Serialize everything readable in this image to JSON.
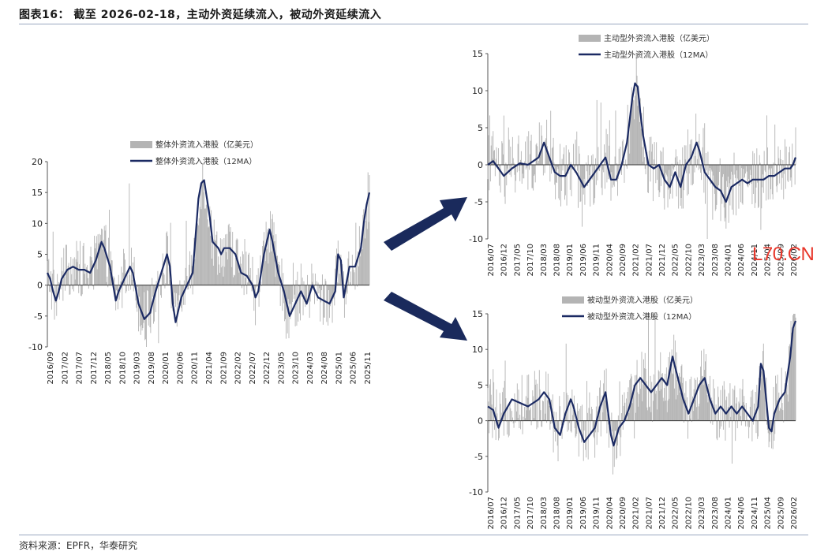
{
  "figure": {
    "title": "图表16： 截至 2026-02-18，主动外资延续流入，被动外资延续流入",
    "source": "资料来源：EPFR，华泰研究",
    "watermark": "L70.CN"
  },
  "colors": {
    "bar": "#b4b4b4",
    "line": "#1b2a63",
    "arrow": "#1a2a5c",
    "rule": "#9aa8c0"
  },
  "chart_data": [
    {
      "id": "total",
      "type": "bar",
      "legend": {
        "bar": "整体外资流入港股（亿美元）",
        "line": "整体外资流入港股（12MA）"
      },
      "ylim": [
        -10,
        20
      ],
      "yticks": [
        -10,
        -5,
        0,
        5,
        10,
        15,
        20
      ],
      "x_tick_labels": [
        "2016/09",
        "2017/02",
        "2017/07",
        "2017/12",
        "2018/05",
        "2018/10",
        "2019/03",
        "2019/08",
        "2020/01",
        "2020/06",
        "2020/11",
        "2021/04",
        "2021/09",
        "2022/02",
        "2022/07",
        "2022/12",
        "2023/05",
        "2023/10",
        "2024/03",
        "2024/08",
        "2025/01",
        "2025/06",
        "2025/11"
      ],
      "line_series": {
        "name": "整体外资流入港股（12MA）",
        "points": [
          [
            "2016/09",
            2
          ],
          [
            "2016/10",
            1
          ],
          [
            "2016/11",
            -1
          ],
          [
            "2016/12",
            -2.5
          ],
          [
            "2017/01",
            -1
          ],
          [
            "2017/02",
            1
          ],
          [
            "2017/04",
            2.5
          ],
          [
            "2017/06",
            3
          ],
          [
            "2017/08",
            2.5
          ],
          [
            "2017/10",
            2.5
          ],
          [
            "2017/12",
            2
          ],
          [
            "2018/02",
            4
          ],
          [
            "2018/04",
            7
          ],
          [
            "2018/05",
            6
          ],
          [
            "2018/07",
            3
          ],
          [
            "2018/09",
            -2.5
          ],
          [
            "2018/10",
            -1
          ],
          [
            "2018/12",
            1
          ],
          [
            "2019/02",
            3
          ],
          [
            "2019/03",
            2
          ],
          [
            "2019/05",
            -3
          ],
          [
            "2019/07",
            -5.5
          ],
          [
            "2019/09",
            -4.5
          ],
          [
            "2019/11",
            -1
          ],
          [
            "2020/01",
            2
          ],
          [
            "2020/03",
            5
          ],
          [
            "2020/04",
            3
          ],
          [
            "2020/05",
            -3
          ],
          [
            "2020/06",
            -6
          ],
          [
            "2020/08",
            -2
          ],
          [
            "2020/10",
            0
          ],
          [
            "2020/12",
            2
          ],
          [
            "2021/01",
            8
          ],
          [
            "2021/02",
            14
          ],
          [
            "2021/03",
            16.5
          ],
          [
            "2021/04",
            17
          ],
          [
            "2021/05",
            14
          ],
          [
            "2021/06",
            11
          ],
          [
            "2021/07",
            7
          ],
          [
            "2021/09",
            6
          ],
          [
            "2021/10",
            5
          ],
          [
            "2021/11",
            6
          ],
          [
            "2022/01",
            6
          ],
          [
            "2022/03",
            5
          ],
          [
            "2022/05",
            2
          ],
          [
            "2022/07",
            1.5
          ],
          [
            "2022/09",
            0
          ],
          [
            "2022/10",
            -2
          ],
          [
            "2022/11",
            -1
          ],
          [
            "2023/01",
            5
          ],
          [
            "2023/03",
            9
          ],
          [
            "2023/04",
            7
          ],
          [
            "2023/06",
            2
          ],
          [
            "2023/08",
            -1
          ],
          [
            "2023/10",
            -5
          ],
          [
            "2023/12",
            -3
          ],
          [
            "2024/02",
            -1
          ],
          [
            "2024/04",
            -3
          ],
          [
            "2024/06",
            0
          ],
          [
            "2024/08",
            -2
          ],
          [
            "2024/10",
            -2.5
          ],
          [
            "2024/12",
            -3
          ],
          [
            "2025/02",
            -1
          ],
          [
            "2025/03",
            5
          ],
          [
            "2025/04",
            4
          ],
          [
            "2025/05",
            -2
          ],
          [
            "2025/07",
            3
          ],
          [
            "2025/09",
            3
          ],
          [
            "2025/11",
            6
          ],
          [
            "2025/12",
            10
          ],
          [
            "2026/01",
            13
          ],
          [
            "2026/02",
            15
          ]
        ]
      }
    },
    {
      "id": "active",
      "type": "bar",
      "legend": {
        "bar": "主动型外资流入港股（亿美元）",
        "line": "主动型外资流入港股（12MA）"
      },
      "ylim": [
        -10,
        15
      ],
      "yticks": [
        -10,
        -5,
        0,
        5,
        10,
        15
      ],
      "x_tick_labels": [
        "2016/07",
        "2016/12",
        "2017/05",
        "2017/10",
        "2018/03",
        "2018/08",
        "2019/01",
        "2019/06",
        "2019/11",
        "2020/04",
        "2020/09",
        "2021/02",
        "2021/07",
        "2021/12",
        "2022/05",
        "2022/10",
        "2023/03",
        "2023/08",
        "2024/01",
        "2024/06",
        "2024/11",
        "2025/04",
        "2025/09",
        "2026/02"
      ],
      "line_series": {
        "name": "主动型外资流入港股（12MA）",
        "points": [
          [
            "2016/07",
            0
          ],
          [
            "2016/09",
            0.5
          ],
          [
            "2016/11",
            -0.5
          ],
          [
            "2017/01",
            -1.5
          ],
          [
            "2017/04",
            -0.5
          ],
          [
            "2017/07",
            0.2
          ],
          [
            "2017/10",
            0
          ],
          [
            "2017/12",
            0.5
          ],
          [
            "2018/02",
            1
          ],
          [
            "2018/04",
            3
          ],
          [
            "2018/06",
            1
          ],
          [
            "2018/08",
            -1
          ],
          [
            "2018/10",
            -1.5
          ],
          [
            "2018/12",
            -1.5
          ],
          [
            "2019/02",
            0
          ],
          [
            "2019/04",
            -1
          ],
          [
            "2019/07",
            -3
          ],
          [
            "2019/09",
            -2
          ],
          [
            "2019/11",
            -1
          ],
          [
            "2020/01",
            0
          ],
          [
            "2020/03",
            1
          ],
          [
            "2020/05",
            -2
          ],
          [
            "2020/07",
            -2
          ],
          [
            "2020/09",
            0
          ],
          [
            "2020/11",
            3
          ],
          [
            "2021/01",
            9
          ],
          [
            "2021/02",
            11
          ],
          [
            "2021/03",
            10.5
          ],
          [
            "2021/04",
            7
          ],
          [
            "2021/05",
            4
          ],
          [
            "2021/07",
            0
          ],
          [
            "2021/09",
            -0.5
          ],
          [
            "2021/11",
            0
          ],
          [
            "2022/01",
            -2
          ],
          [
            "2022/03",
            -3
          ],
          [
            "2022/05",
            -1
          ],
          [
            "2022/07",
            -3
          ],
          [
            "2022/09",
            0
          ],
          [
            "2022/11",
            1
          ],
          [
            "2023/01",
            3
          ],
          [
            "2023/02",
            2
          ],
          [
            "2023/04",
            -1
          ],
          [
            "2023/06",
            -2
          ],
          [
            "2023/08",
            -3
          ],
          [
            "2023/10",
            -3.5
          ],
          [
            "2023/12",
            -5
          ],
          [
            "2024/02",
            -3
          ],
          [
            "2024/04",
            -2.5
          ],
          [
            "2024/06",
            -2
          ],
          [
            "2024/08",
            -2.5
          ],
          [
            "2024/10",
            -2
          ],
          [
            "2024/12",
            -2
          ],
          [
            "2025/02",
            -2
          ],
          [
            "2025/04",
            -1.5
          ],
          [
            "2025/06",
            -1.5
          ],
          [
            "2025/08",
            -1
          ],
          [
            "2025/10",
            -0.5
          ],
          [
            "2025/12",
            -0.5
          ],
          [
            "2026/01",
            0
          ],
          [
            "2026/02",
            1
          ]
        ]
      }
    },
    {
      "id": "passive",
      "type": "bar",
      "legend": {
        "bar": "被动型外资流入港股（亿美元）",
        "line": "被动型外资流入港股（12MA）"
      },
      "ylim": [
        -10,
        15
      ],
      "yticks": [
        -10,
        -5,
        0,
        5,
        10,
        15
      ],
      "x_tick_labels": [
        "2016/07",
        "2016/12",
        "2017/05",
        "2017/10",
        "2018/03",
        "2018/08",
        "2019/01",
        "2019/06",
        "2019/11",
        "2020/04",
        "2020/09",
        "2021/02",
        "2021/07",
        "2021/12",
        "2022/05",
        "2022/10",
        "2023/03",
        "2023/08",
        "2024/01",
        "2024/06",
        "2024/11",
        "2025/04",
        "2025/09",
        "2026/02"
      ],
      "line_series": {
        "name": "被动型外资流入港股（12MA）",
        "points": [
          [
            "2016/07",
            2
          ],
          [
            "2016/09",
            1.5
          ],
          [
            "2016/11",
            -1
          ],
          [
            "2017/01",
            1
          ],
          [
            "2017/04",
            3
          ],
          [
            "2017/07",
            2.5
          ],
          [
            "2017/10",
            2
          ],
          [
            "2017/12",
            2.5
          ],
          [
            "2018/02",
            3
          ],
          [
            "2018/04",
            4
          ],
          [
            "2018/06",
            3
          ],
          [
            "2018/08",
            -1
          ],
          [
            "2018/10",
            -2
          ],
          [
            "2018/12",
            1
          ],
          [
            "2019/02",
            3
          ],
          [
            "2019/03",
            2
          ],
          [
            "2019/05",
            -1
          ],
          [
            "2019/07",
            -3
          ],
          [
            "2019/09",
            -2
          ],
          [
            "2019/11",
            -1
          ],
          [
            "2020/01",
            2
          ],
          [
            "2020/03",
            4
          ],
          [
            "2020/05",
            -2
          ],
          [
            "2020/06",
            -3.5
          ],
          [
            "2020/08",
            -1
          ],
          [
            "2020/10",
            0
          ],
          [
            "2020/12",
            2
          ],
          [
            "2021/02",
            5
          ],
          [
            "2021/04",
            6
          ],
          [
            "2021/06",
            5
          ],
          [
            "2021/08",
            4
          ],
          [
            "2021/10",
            5
          ],
          [
            "2021/12",
            6
          ],
          [
            "2022/02",
            5
          ],
          [
            "2022/04",
            9
          ],
          [
            "2022/06",
            6
          ],
          [
            "2022/08",
            3
          ],
          [
            "2022/10",
            1
          ],
          [
            "2022/12",
            3
          ],
          [
            "2023/02",
            5
          ],
          [
            "2023/04",
            6
          ],
          [
            "2023/06",
            3
          ],
          [
            "2023/08",
            1
          ],
          [
            "2023/10",
            2
          ],
          [
            "2023/12",
            1
          ],
          [
            "2024/02",
            2
          ],
          [
            "2024/04",
            1
          ],
          [
            "2024/06",
            2
          ],
          [
            "2024/08",
            1
          ],
          [
            "2024/10",
            0
          ],
          [
            "2024/12",
            2
          ],
          [
            "2025/01",
            8
          ],
          [
            "2025/02",
            7
          ],
          [
            "2025/04",
            -1
          ],
          [
            "2025/05",
            -1.5
          ],
          [
            "2025/06",
            1
          ],
          [
            "2025/08",
            3
          ],
          [
            "2025/10",
            4
          ],
          [
            "2025/12",
            9
          ],
          [
            "2026/01",
            13
          ],
          [
            "2026/02",
            14
          ]
        ]
      }
    }
  ]
}
